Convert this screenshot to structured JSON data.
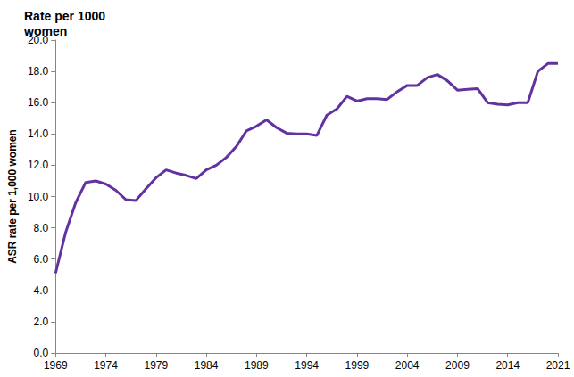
{
  "chart_data": {
    "type": "line",
    "title": "Rate per 1000\nwomen",
    "y_label": "ASR rate per 1,000 women",
    "categories": [
      "1969",
      null,
      null,
      null,
      null,
      "1974",
      null,
      null,
      null,
      null,
      "1979",
      null,
      null,
      null,
      null,
      "1984",
      null,
      null,
      null,
      null,
      "1989",
      null,
      null,
      null,
      null,
      "1994",
      null,
      null,
      null,
      null,
      "1999",
      null,
      null,
      null,
      null,
      "2004",
      null,
      null,
      null,
      null,
      "2009",
      null,
      null,
      null,
      null,
      "2014",
      null,
      null,
      null,
      null,
      "2021"
    ],
    "values": [
      5.1,
      7.7,
      9.6,
      10.9,
      11.0,
      10.8,
      10.4,
      9.8,
      9.75,
      10.5,
      11.2,
      11.7,
      11.5,
      11.35,
      11.15,
      11.7,
      12.0,
      12.5,
      13.2,
      14.2,
      14.5,
      14.9,
      14.4,
      14.05,
      14.0,
      14.0,
      13.9,
      15.2,
      15.6,
      16.4,
      16.1,
      16.25,
      16.25,
      16.2,
      16.7,
      17.1,
      17.1,
      17.6,
      17.8,
      17.4,
      16.8,
      16.85,
      16.9,
      16.0,
      15.9,
      15.85,
      16.0,
      16.0,
      18.0,
      18.5,
      18.5
    ],
    "color": "#6233a0",
    "ylim": [
      0,
      20
    ],
    "yticks": [
      {
        "value": 0,
        "label": "0.0"
      },
      {
        "value": 2,
        "label": "2.0"
      },
      {
        "value": 4,
        "label": "4.0"
      },
      {
        "value": 6,
        "label": "6.0"
      },
      {
        "value": 8,
        "label": "8.0"
      },
      {
        "value": 10,
        "label": "10.0"
      },
      {
        "value": 12,
        "label": "12.0"
      },
      {
        "value": 14,
        "label": "14.0"
      },
      {
        "value": 16,
        "label": "16.0"
      },
      {
        "value": 18,
        "label": "18.0"
      },
      {
        "value": 20,
        "label": "20.0"
      }
    ],
    "grid": false
  }
}
